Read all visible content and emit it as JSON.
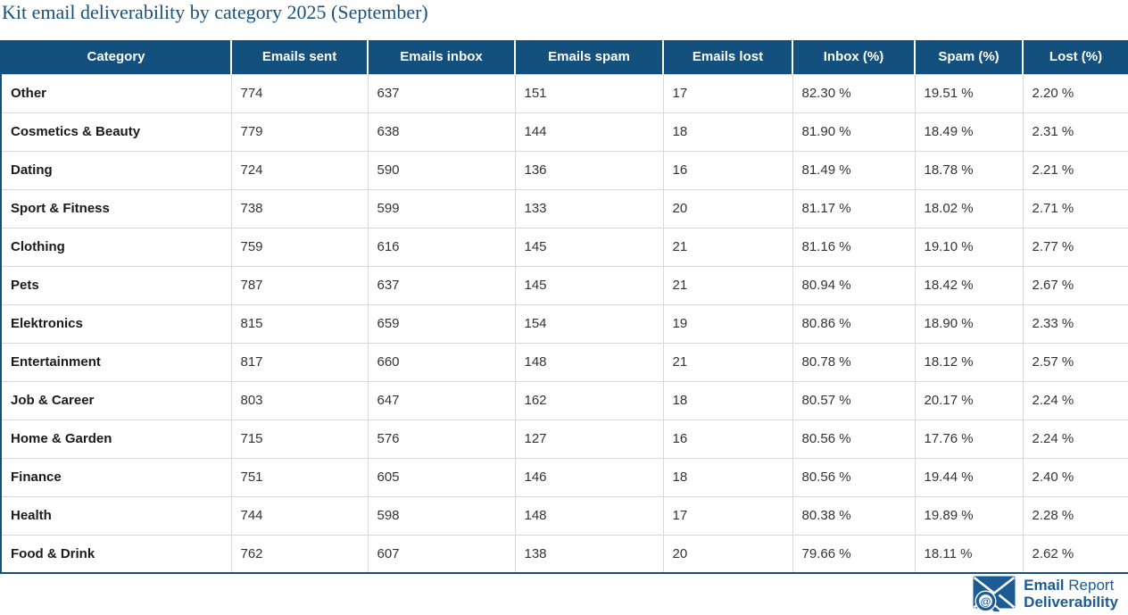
{
  "page": {
    "title": "Kit email deliverability by category 2025 (September)"
  },
  "chart_data": {
    "type": "table",
    "title": "Kit email deliverability by category 2025 (September)",
    "columns": [
      "Category",
      "Emails sent",
      "Emails inbox",
      "Emails spam",
      "Emails lost",
      "Inbox (%)",
      "Spam (%)",
      "Lost (%)"
    ],
    "rows": [
      [
        "Other",
        "774",
        "637",
        "151",
        "17",
        "82.30 %",
        "19.51 %",
        "2.20 %"
      ],
      [
        "Cosmetics & Beauty",
        "779",
        "638",
        "144",
        "18",
        "81.90 %",
        "18.49 %",
        "2.31 %"
      ],
      [
        "Dating",
        "724",
        "590",
        "136",
        "16",
        "81.49 %",
        "18.78 %",
        "2.21 %"
      ],
      [
        "Sport & Fitness",
        "738",
        "599",
        "133",
        "20",
        "81.17 %",
        "18.02 %",
        "2.71 %"
      ],
      [
        "Clothing",
        "759",
        "616",
        "145",
        "21",
        "81.16 %",
        "19.10 %",
        "2.77 %"
      ],
      [
        "Pets",
        "787",
        "637",
        "145",
        "21",
        "80.94 %",
        "18.42 %",
        "2.67 %"
      ],
      [
        "Elektronics",
        "815",
        "659",
        "154",
        "19",
        "80.86 %",
        "18.90 %",
        "2.33 %"
      ],
      [
        "Entertainment",
        "817",
        "660",
        "148",
        "21",
        "80.78 %",
        "18.12 %",
        "2.57 %"
      ],
      [
        "Job & Career",
        "803",
        "647",
        "162",
        "18",
        "80.57 %",
        "20.17 %",
        "2.24 %"
      ],
      [
        "Home & Garden",
        "715",
        "576",
        "127",
        "16",
        "80.56 %",
        "17.76 %",
        "2.24 %"
      ],
      [
        "Finance",
        "751",
        "605",
        "146",
        "18",
        "80.56 %",
        "19.44 %",
        "2.40 %"
      ],
      [
        "Health",
        "744",
        "598",
        "148",
        "17",
        "80.38 %",
        "19.89 %",
        "2.28 %"
      ],
      [
        "Food & Drink",
        "762",
        "607",
        "138",
        "20",
        "79.66 %",
        "18.11 %",
        "2.62 %"
      ]
    ]
  },
  "colors": {
    "header_bg": "#14507E",
    "title_text": "#17527E",
    "grid_line": "#D8D8D8",
    "body_text": "#333333",
    "logo_blue": "#1D5B94"
  },
  "footer": {
    "logo": {
      "line1_bold": "Email",
      "line1_regular": "Report",
      "line2": "Deliverability",
      "at_symbol": "@"
    }
  }
}
